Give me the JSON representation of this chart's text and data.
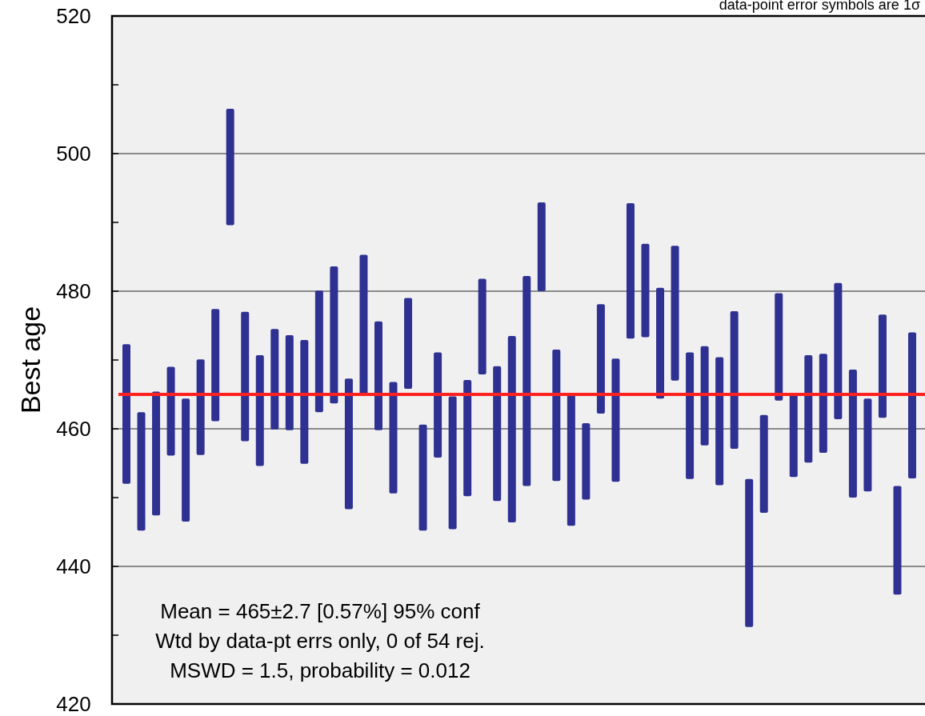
{
  "chart_data": {
    "type": "bar",
    "ylabel": "Best age",
    "categories": [
      null,
      null,
      null,
      null,
      null,
      null,
      null,
      null,
      null,
      null,
      null,
      null,
      null,
      null,
      null,
      null,
      null,
      null,
      null,
      null,
      null,
      null,
      null,
      null,
      null,
      null,
      null,
      null,
      null,
      null,
      null,
      null,
      null,
      null,
      null,
      null,
      null,
      null,
      null,
      null,
      null,
      null,
      null,
      null,
      null,
      null,
      null,
      null,
      null,
      null,
      null,
      null,
      null,
      null
    ],
    "base": [
      452.0,
      445.2,
      447.4,
      456.1,
      446.5,
      456.2,
      461.1,
      489.6,
      458.2,
      454.6,
      459.9,
      459.8,
      454.9,
      462.4,
      463.7,
      448.3,
      465.0,
      459.8,
      450.6,
      465.8,
      445.2,
      455.8,
      445.4,
      450.2,
      467.9,
      449.5,
      446.4,
      451.7,
      480.0,
      452.4,
      445.9,
      449.7,
      462.2,
      452.3,
      473.1,
      473.3,
      464.4,
      467.0,
      452.7,
      457.6,
      451.8,
      457.1,
      431.2,
      447.8,
      464.1,
      453.0,
      455.1,
      456.5,
      461.4,
      450.0,
      450.9,
      461.6,
      435.9,
      452.8
    ],
    "values": [
      20.3,
      17.2,
      18.0,
      12.9,
      17.9,
      13.9,
      16.3,
      16.9,
      18.8,
      16.1,
      14.6,
      13.8,
      18.0,
      17.7,
      19.9,
      19.0,
      20.3,
      15.8,
      16.2,
      13.2,
      15.4,
      15.3,
      19.3,
      16.9,
      13.9,
      19.6,
      27.1,
      30.5,
      12.9,
      19.1,
      19.0,
      11.1,
      15.9,
      17.9,
      19.7,
      13.6,
      16.1,
      19.6,
      18.4,
      14.4,
      18.6,
      20.0,
      21.5,
      14.2,
      15.6,
      12.0,
      15.6,
      14.4,
      19.8,
      18.6,
      13.5,
      15.0,
      15.8,
      21.2
    ],
    "color": "#2e3192",
    "ylim": [
      420,
      520
    ],
    "yticks": [
      420,
      {
        "value": 430,
        "label": null
      },
      440,
      {
        "value": 450,
        "label": null
      },
      460,
      {
        "value": 470,
        "label": null
      },
      480,
      {
        "value": 490,
        "label": null
      },
      500,
      {
        "value": 510,
        "label": null
      },
      520
    ],
    "grid": "y",
    "ref_lines": [
      {
        "axis": "y",
        "value": 465,
        "color": "#ff2020"
      }
    ],
    "annotations": [
      "data-point error symbols are 1σ",
      "Mean = 465±2.7 [0.57%] 95% conf",
      "Wtd by data-pt errs only, 0 of 54 rej.",
      "MSWD = 1.5, probability = 0.012"
    ]
  }
}
